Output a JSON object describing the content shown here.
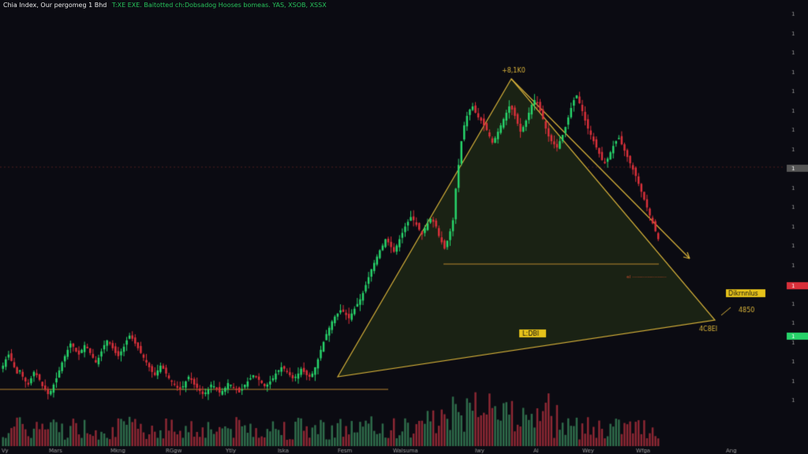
{
  "header": {
    "symbol": "Chia Index, Our pergomeg 1 Bhd",
    "ohlc": "T:XE EXE. Baitotted ch:Dobsadog Hooses bomeas. YAS, XSOB, XSSX"
  },
  "chart_data": {
    "type": "candlestick",
    "title": "",
    "price_axis_labels": [
      "1",
      "1",
      "1",
      "1",
      "1",
      "1",
      "1",
      "1",
      "1",
      "1",
      "1",
      "1",
      "1",
      "1",
      "1",
      "1",
      "1",
      "1",
      "1",
      "1",
      "1"
    ],
    "time_axis_labels": [
      "Vy",
      "Mars",
      "Mkng",
      "RGgw",
      "Ytly",
      "Iska",
      "Fesm",
      "Walsuma",
      "Iwy",
      "Al",
      "Wey",
      "Wfga",
      "Ang"
    ],
    "annotations": {
      "apex_label": "+8,1K0",
      "right_tag": "Dikrnnlus",
      "right_value": "4850",
      "bottom_right_value": "4C8EI",
      "base_label": "L:DBI",
      "small_label": "el --------------------"
    },
    "price_tags": {
      "current": "1",
      "red": "1",
      "green": "1"
    },
    "colors": {
      "background": "#0b0b12",
      "up": "#27d36a",
      "down": "#d8303a",
      "triangle_line": "#d6b13a",
      "triangle_fill": "#1a2214",
      "volume_up": "#2e6b4a",
      "volume_down": "#8a2733"
    },
    "candles_close": [
      48,
      52,
      55,
      51,
      47,
      43,
      45,
      41,
      38,
      36,
      40,
      44,
      42,
      39,
      35,
      33,
      30,
      32,
      36,
      40,
      45,
      50,
      54,
      58,
      62,
      60,
      57,
      55,
      58,
      61,
      59,
      56,
      53,
      50,
      53,
      57,
      61,
      64,
      62,
      59,
      56,
      54,
      57,
      60,
      64,
      67,
      65,
      62,
      59,
      56,
      53,
      50,
      47,
      44,
      42,
      45,
      48,
      46,
      43,
      40,
      38,
      36,
      34,
      33,
      35,
      38,
      41,
      39,
      36,
      34,
      32,
      30,
      31,
      33,
      36,
      35,
      33,
      31,
      32,
      34,
      37,
      36,
      34,
      33,
      31,
      33,
      36,
      38,
      40,
      42,
      41,
      39,
      37,
      35,
      36,
      38,
      40,
      43,
      45,
      47,
      46,
      44,
      42,
      40,
      41,
      43,
      46,
      44,
      42,
      41,
      43,
      47,
      52,
      58,
      63,
      68,
      72,
      76,
      79,
      81,
      83,
      82,
      80,
      78,
      81,
      84,
      87,
      90,
      94,
      99,
      104,
      109,
      113,
      117,
      121,
      124,
      128,
      126,
      123,
      120,
      124,
      128,
      132,
      136,
      139,
      142,
      140,
      137,
      134,
      131,
      135,
      138,
      141,
      139,
      136,
      130,
      126,
      122,
      127,
      133,
      140,
      160,
      175,
      190,
      200,
      206,
      210,
      212,
      208,
      205,
      203,
      200,
      197,
      193,
      189,
      192,
      196,
      200,
      204,
      208,
      212,
      210,
      206,
      201,
      196,
      199,
      203,
      208,
      213,
      216,
      214,
      209,
      204,
      198,
      193,
      190,
      188,
      186,
      190,
      194,
      199,
      205,
      211,
      216,
      219,
      214,
      209,
      203,
      198,
      194,
      190,
      186,
      182,
      178,
      176,
      179,
      183,
      187,
      190,
      192,
      188,
      184,
      180,
      176,
      172,
      168,
      163,
      158,
      153,
      148,
      143,
      138,
      133,
      128
    ]
  }
}
